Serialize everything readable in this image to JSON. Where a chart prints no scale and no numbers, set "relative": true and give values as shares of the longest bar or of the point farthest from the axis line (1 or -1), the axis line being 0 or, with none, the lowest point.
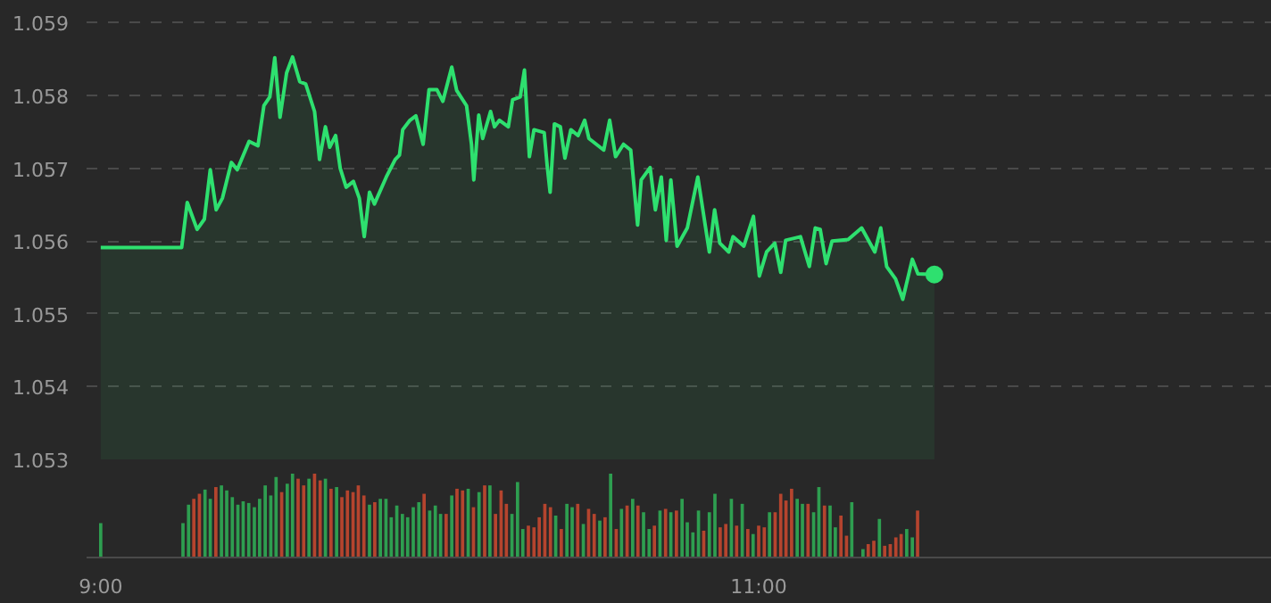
{
  "chart_data": [
    {
      "type": "area",
      "tick_labels": "y",
      "grid": "y",
      "xlim": [
        8.957,
        12.56
      ],
      "ylim": [
        1.053,
        1.0593
      ],
      "yticks": [
        1.053,
        1.054,
        1.055,
        1.056,
        1.057,
        1.058,
        1.059
      ],
      "series": [
        {
          "color": "#2ee06f",
          "x": [
            9.0,
            9.246,
            9.263,
            9.293,
            9.315,
            9.333,
            9.351,
            9.37,
            9.397,
            9.415,
            9.451,
            9.478,
            9.496,
            9.514,
            9.529,
            9.545,
            9.565,
            9.583,
            9.605,
            9.623,
            9.65,
            9.665,
            9.683,
            9.696,
            9.714,
            9.728,
            9.746,
            9.768,
            9.786,
            9.801,
            9.817,
            9.832,
            9.868,
            9.895,
            9.908,
            9.918,
            9.94,
            9.958,
            9.98,
            9.998,
            10.022,
            10.04,
            10.067,
            10.082,
            10.112,
            10.127,
            10.134,
            10.149,
            10.161,
            10.185,
            10.197,
            10.212,
            10.239,
            10.252,
            10.275,
            10.288,
            10.303,
            10.317,
            10.348,
            10.357,
            10.366,
            10.379,
            10.397,
            10.411,
            10.429,
            10.451,
            10.471,
            10.484,
            10.529,
            10.547,
            10.565,
            10.589,
            10.611,
            10.632,
            10.643,
            10.67,
            10.686,
            10.704,
            10.719,
            10.733,
            10.752,
            10.783,
            10.815,
            10.85,
            10.866,
            10.882,
            10.909,
            10.922,
            10.955,
            10.984,
            11.002,
            11.024,
            11.049,
            11.067,
            11.082,
            11.127,
            11.154,
            11.172,
            11.187,
            11.205,
            11.223,
            11.272,
            11.313,
            11.353,
            11.371,
            11.389,
            11.416,
            11.438,
            11.467,
            11.484,
            11.534
          ],
          "values": [
            1.05591,
            1.05591,
            1.05653,
            1.05616,
            1.0563,
            1.05698,
            1.05643,
            1.05659,
            1.05708,
            1.05698,
            1.05737,
            1.05731,
            1.05786,
            1.05798,
            1.05852,
            1.0577,
            1.05831,
            1.05853,
            1.05819,
            1.05816,
            1.05778,
            1.05712,
            1.05757,
            1.05729,
            1.05745,
            1.057,
            1.05674,
            1.05682,
            1.05659,
            1.05606,
            1.05667,
            1.05651,
            1.05688,
            1.05712,
            1.05718,
            1.05753,
            1.05766,
            1.05772,
            1.05733,
            1.05808,
            1.05808,
            1.05792,
            1.05839,
            1.05807,
            1.05786,
            1.05733,
            1.05684,
            1.05773,
            1.05741,
            1.05778,
            1.05757,
            1.05766,
            1.05757,
            1.05794,
            1.05798,
            1.05835,
            1.05716,
            1.05753,
            1.05749,
            1.05704,
            1.05667,
            1.05761,
            1.05757,
            1.05714,
            1.05753,
            1.05745,
            1.05766,
            1.05741,
            1.05725,
            1.05766,
            1.05716,
            1.05733,
            1.05725,
            1.05622,
            1.05684,
            1.05701,
            1.05643,
            1.05688,
            1.05601,
            1.05684,
            1.05593,
            1.05618,
            1.05688,
            1.05585,
            1.05643,
            1.05597,
            1.05585,
            1.05606,
            1.05593,
            1.05634,
            1.05552,
            1.05585,
            1.05597,
            1.05557,
            1.05601,
            1.05606,
            1.05565,
            1.05618,
            1.05616,
            1.05569,
            1.056,
            1.05602,
            1.05618,
            1.05585,
            1.05618,
            1.05565,
            1.05548,
            1.0552,
            1.05575,
            1.05555,
            1.05554
          ]
        },
        {
          "type": "scatter",
          "color": "#2ee06f",
          "x": [
            11.534
          ],
          "values": [
            1.05554
          ]
        }
      ]
    },
    {
      "type": "bar",
      "relative": true,
      "tick_labels": "x",
      "xlim": [
        8.957,
        12.56
      ],
      "xticks": [
        {
          "value": 9,
          "label": "9:00"
        },
        {
          "value": 11,
          "label": "11:00"
        }
      ],
      "x": [
        9.0,
        9.25,
        9.267,
        9.283,
        9.3,
        9.317,
        9.333,
        9.35,
        9.367,
        9.383,
        9.4,
        9.417,
        9.433,
        9.45,
        9.467,
        9.483,
        9.5,
        9.517,
        9.533,
        9.55,
        9.567,
        9.583,
        9.6,
        9.617,
        9.633,
        9.65,
        9.667,
        9.683,
        9.7,
        9.717,
        9.733,
        9.75,
        9.767,
        9.783,
        9.8,
        9.817,
        9.833,
        9.85,
        9.867,
        9.883,
        9.9,
        9.917,
        9.933,
        9.95,
        9.967,
        9.983,
        10,
        10.017,
        10.033,
        10.05,
        10.067,
        10.083,
        10.1,
        10.117,
        10.133,
        10.15,
        10.167,
        10.183,
        10.2,
        10.217,
        10.233,
        10.25,
        10.267,
        10.283,
        10.3,
        10.317,
        10.333,
        10.35,
        10.367,
        10.383,
        10.4,
        10.417,
        10.433,
        10.45,
        10.467,
        10.483,
        10.5,
        10.517,
        10.533,
        10.55,
        10.567,
        10.583,
        10.6,
        10.617,
        10.633,
        10.65,
        10.667,
        10.683,
        10.7,
        10.717,
        10.733,
        10.75,
        10.767,
        10.783,
        10.8,
        10.817,
        10.833,
        10.85,
        10.867,
        10.883,
        10.9,
        10.917,
        10.933,
        10.95,
        10.967,
        10.983,
        11,
        11.017,
        11.033,
        11.05,
        11.067,
        11.083,
        11.1,
        11.117,
        11.133,
        11.15,
        11.167,
        11.183,
        11.2,
        11.217,
        11.233,
        11.25,
        11.267,
        11.283,
        11.317,
        11.333,
        11.35,
        11.367,
        11.383,
        11.4,
        11.417,
        11.433,
        11.45,
        11.467,
        11.483
      ],
      "values": [
        0.41,
        0.41,
        0.63,
        0.7,
        0.76,
        0.81,
        0.7,
        0.84,
        0.86,
        0.8,
        0.72,
        0.63,
        0.67,
        0.65,
        0.6,
        0.7,
        0.86,
        0.74,
        0.96,
        0.78,
        0.88,
        1,
        0.94,
        0.86,
        0.94,
        1,
        0.92,
        0.94,
        0.82,
        0.84,
        0.72,
        0.8,
        0.78,
        0.86,
        0.74,
        0.63,
        0.66,
        0.7,
        0.7,
        0.48,
        0.62,
        0.52,
        0.48,
        0.6,
        0.66,
        0.76,
        0.56,
        0.62,
        0.52,
        0.52,
        0.74,
        0.82,
        0.8,
        0.82,
        0.6,
        0.78,
        0.86,
        0.86,
        0.52,
        0.8,
        0.64,
        0.52,
        0.9,
        0.34,
        0.38,
        0.36,
        0.48,
        0.64,
        0.6,
        0.5,
        0.34,
        0.64,
        0.6,
        0.64,
        0.4,
        0.58,
        0.52,
        0.44,
        0.48,
        1,
        0.34,
        0.58,
        0.62,
        0.7,
        0.62,
        0.54,
        0.34,
        0.38,
        0.56,
        0.58,
        0.54,
        0.56,
        0.7,
        0.42,
        0.3,
        0.56,
        0.32,
        0.54,
        0.76,
        0.36,
        0.4,
        0.7,
        0.38,
        0.64,
        0.34,
        0.28,
        0.38,
        0.36,
        0.54,
        0.54,
        0.76,
        0.68,
        0.82,
        0.7,
        0.64,
        0.64,
        0.54,
        0.84,
        0.62,
        0.62,
        0.36,
        0.5,
        0.26,
        0.66,
        0.1,
        0.16,
        0.2,
        0.46,
        0.14,
        0.16,
        0.24,
        0.28,
        0.34,
        0.24,
        0.56
      ],
      "colors": [
        "#2e9e50",
        "#2e9e50",
        "#2e9e50",
        "#b5442e",
        "#b5442e",
        "#2e9e50",
        "#2e9e50",
        "#b5442e",
        "#2e9e50",
        "#2e9e50",
        "#2e9e50",
        "#2e9e50",
        "#2e9e50",
        "#2e9e50",
        "#2e9e50",
        "#2e9e50",
        "#2e9e50",
        "#2e9e50",
        "#2e9e50",
        "#b5442e",
        "#2e9e50",
        "#2e9e50",
        "#b5442e",
        "#b5442e",
        "#2e9e50",
        "#b5442e",
        "#b5442e",
        "#2e9e50",
        "#b5442e",
        "#2e9e50",
        "#b5442e",
        "#b5442e",
        "#b5442e",
        "#b5442e",
        "#b5442e",
        "#2e9e50",
        "#b5442e",
        "#2e9e50",
        "#2e9e50",
        "#2e9e50",
        "#2e9e50",
        "#2e9e50",
        "#2e9e50",
        "#2e9e50",
        "#2e9e50",
        "#b5442e",
        "#2e9e50",
        "#2e9e50",
        "#2e9e50",
        "#b5442e",
        "#2e9e50",
        "#b5442e",
        "#b5442e",
        "#2e9e50",
        "#b5442e",
        "#2e9e50",
        "#b5442e",
        "#2e9e50",
        "#b5442e",
        "#b5442e",
        "#b5442e",
        "#2e9e50",
        "#2e9e50",
        "#2e9e50",
        "#b5442e",
        "#b5442e",
        "#b5442e",
        "#b5442e",
        "#b5442e",
        "#2e9e50",
        "#b5442e",
        "#2e9e50",
        "#2e9e50",
        "#b5442e",
        "#2e9e50",
        "#b5442e",
        "#b5442e",
        "#2e9e50",
        "#b5442e",
        "#2e9e50",
        "#b5442e",
        "#2e9e50",
        "#b5442e",
        "#2e9e50",
        "#b5442e",
        "#2e9e50",
        "#2e9e50",
        "#b5442e",
        "#2e9e50",
        "#b5442e",
        "#2e9e50",
        "#b5442e",
        "#2e9e50",
        "#2e9e50",
        "#2e9e50",
        "#2e9e50",
        "#b5442e",
        "#2e9e50",
        "#2e9e50",
        "#b5442e",
        "#b5442e",
        "#2e9e50",
        "#b5442e",
        "#2e9e50",
        "#b5442e",
        "#2e9e50",
        "#b5442e",
        "#b5442e",
        "#2e9e50",
        "#b5442e",
        "#b5442e",
        "#b5442e",
        "#b5442e",
        "#2e9e50",
        "#2e9e50",
        "#b5442e",
        "#2e9e50",
        "#2e9e50",
        "#b5442e",
        "#2e9e50",
        "#2e9e50",
        "#b5442e",
        "#b5442e",
        "#2e9e50",
        "#2e9e50",
        "#b5442e",
        "#b5442e",
        "#2e9e50",
        "#b5442e",
        "#b5442e",
        "#b5442e",
        "#b5442e",
        "#2e9e50",
        "#2e9e50",
        "#b5442e"
      ]
    }
  ]
}
